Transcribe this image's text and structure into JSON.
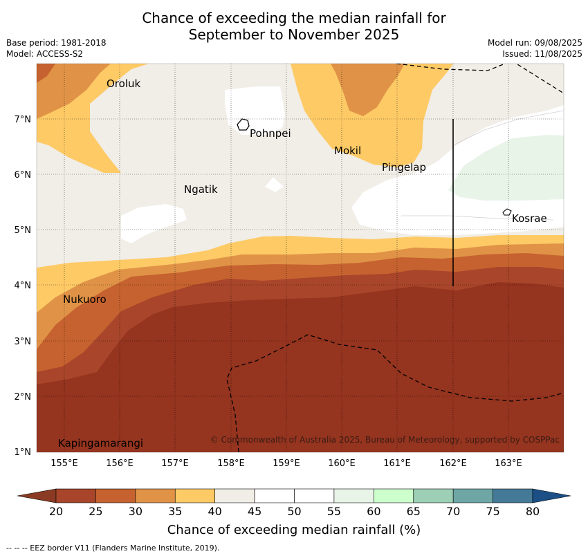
{
  "title_line1": "Chance of exceeding the median rainfall for",
  "title_line2": "September to November 2025",
  "base_period": "Base period: 1981-2018",
  "model": "Model: ACCESS-S2",
  "model_run": "Model run: 09/08/2025",
  "issued": "Issued: 11/08/2025",
  "copyright": "© Commonwealth of Australia 2025, Bureau of Meteorology, supported by COSPPac",
  "footnote": "-- -- -- EEZ border V11 (Flanders Marine Institute, 2019).",
  "map": {
    "lon_ticks": [
      "155°E",
      "156°E",
      "157°E",
      "158°E",
      "159°E",
      "160°E",
      "161°E",
      "162°E",
      "163°E"
    ],
    "lat_ticks": [
      "7°N",
      "6°N",
      "5°N",
      "4°N",
      "3°N",
      "2°N",
      "1°N"
    ],
    "places": [
      {
        "name": "Oroluk",
        "lon": 155.7,
        "lat": 7.6
      },
      {
        "name": "Pohnpei",
        "lon": 158.3,
        "lat": 6.9
      },
      {
        "name": "Mokil",
        "lon": 159.8,
        "lat": 6.7
      },
      {
        "name": "Pingelap",
        "lon": 160.7,
        "lat": 6.2
      },
      {
        "name": "Ngatik",
        "lon": 157.1,
        "lat": 5.8
      },
      {
        "name": "Kosrae",
        "lon": 163.0,
        "lat": 5.3
      },
      {
        "name": "Nukuoro",
        "lon": 155.0,
        "lat": 3.9
      },
      {
        "name": "Kapingamarangi",
        "lon": 154.9,
        "lat": 1.1
      }
    ]
  },
  "colorbar": {
    "label": "Chance of exceeding median rainfall (%)",
    "ticks": [
      "20",
      "25",
      "30",
      "35",
      "40",
      "45",
      "50",
      "55",
      "60",
      "65",
      "70",
      "75",
      "80"
    ],
    "colors": [
      "#a8452a",
      "#c6622f",
      "#e09347",
      "#fdca66",
      "#f1ede7",
      "#ffffff",
      "#ffffff",
      "#e8f4e8",
      "#ccffcc",
      "#9ccfb5",
      "#6ea6a6",
      "#447a97",
      "#1e5a8f"
    ],
    "under_color": "#8b3a23",
    "over_color": "#1b4f86"
  }
}
